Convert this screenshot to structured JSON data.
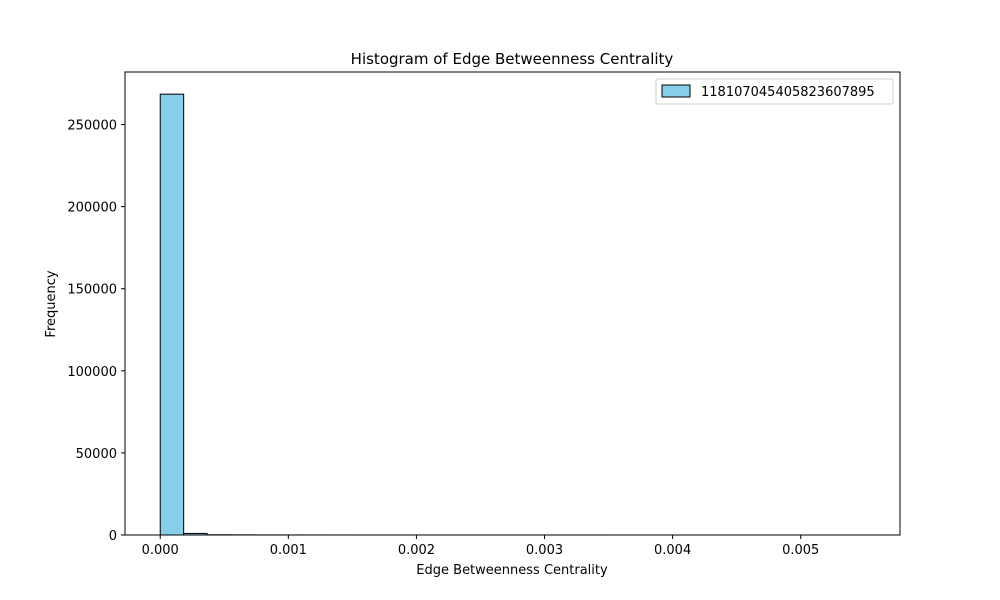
{
  "chart_data": {
    "type": "bar",
    "title": "Histogram of Edge Betweenness Centrality",
    "xlabel": "Edge Betweenness Centrality",
    "ylabel": "Frequency",
    "xlim": [
      -0.000275,
      0.005775
    ],
    "ylim": [
      0,
      282000
    ],
    "bin_width": 0.000183,
    "bin_edges_start": 0.0,
    "counts": [
      268500,
      950,
      160,
      90,
      60,
      40,
      30,
      25,
      20,
      18,
      15,
      12,
      10,
      9,
      8,
      7,
      6,
      5,
      5,
      4,
      4,
      3,
      3,
      2,
      2,
      2,
      2,
      1,
      1,
      1
    ],
    "x_ticks": [
      0.0,
      0.001,
      0.002,
      0.003,
      0.004,
      0.005
    ],
    "x_tick_labels": [
      "0.000",
      "0.001",
      "0.002",
      "0.003",
      "0.004",
      "0.005"
    ],
    "y_ticks": [
      0,
      50000,
      100000,
      150000,
      200000,
      250000
    ],
    "y_tick_labels": [
      "0",
      "50000",
      "100000",
      "150000",
      "200000",
      "250000"
    ],
    "legend": {
      "entries": [
        "118107045405823607895"
      ],
      "position": "top-right"
    },
    "bar_color": "#87ceeb",
    "edge_color": "#000000",
    "grid": false
  }
}
